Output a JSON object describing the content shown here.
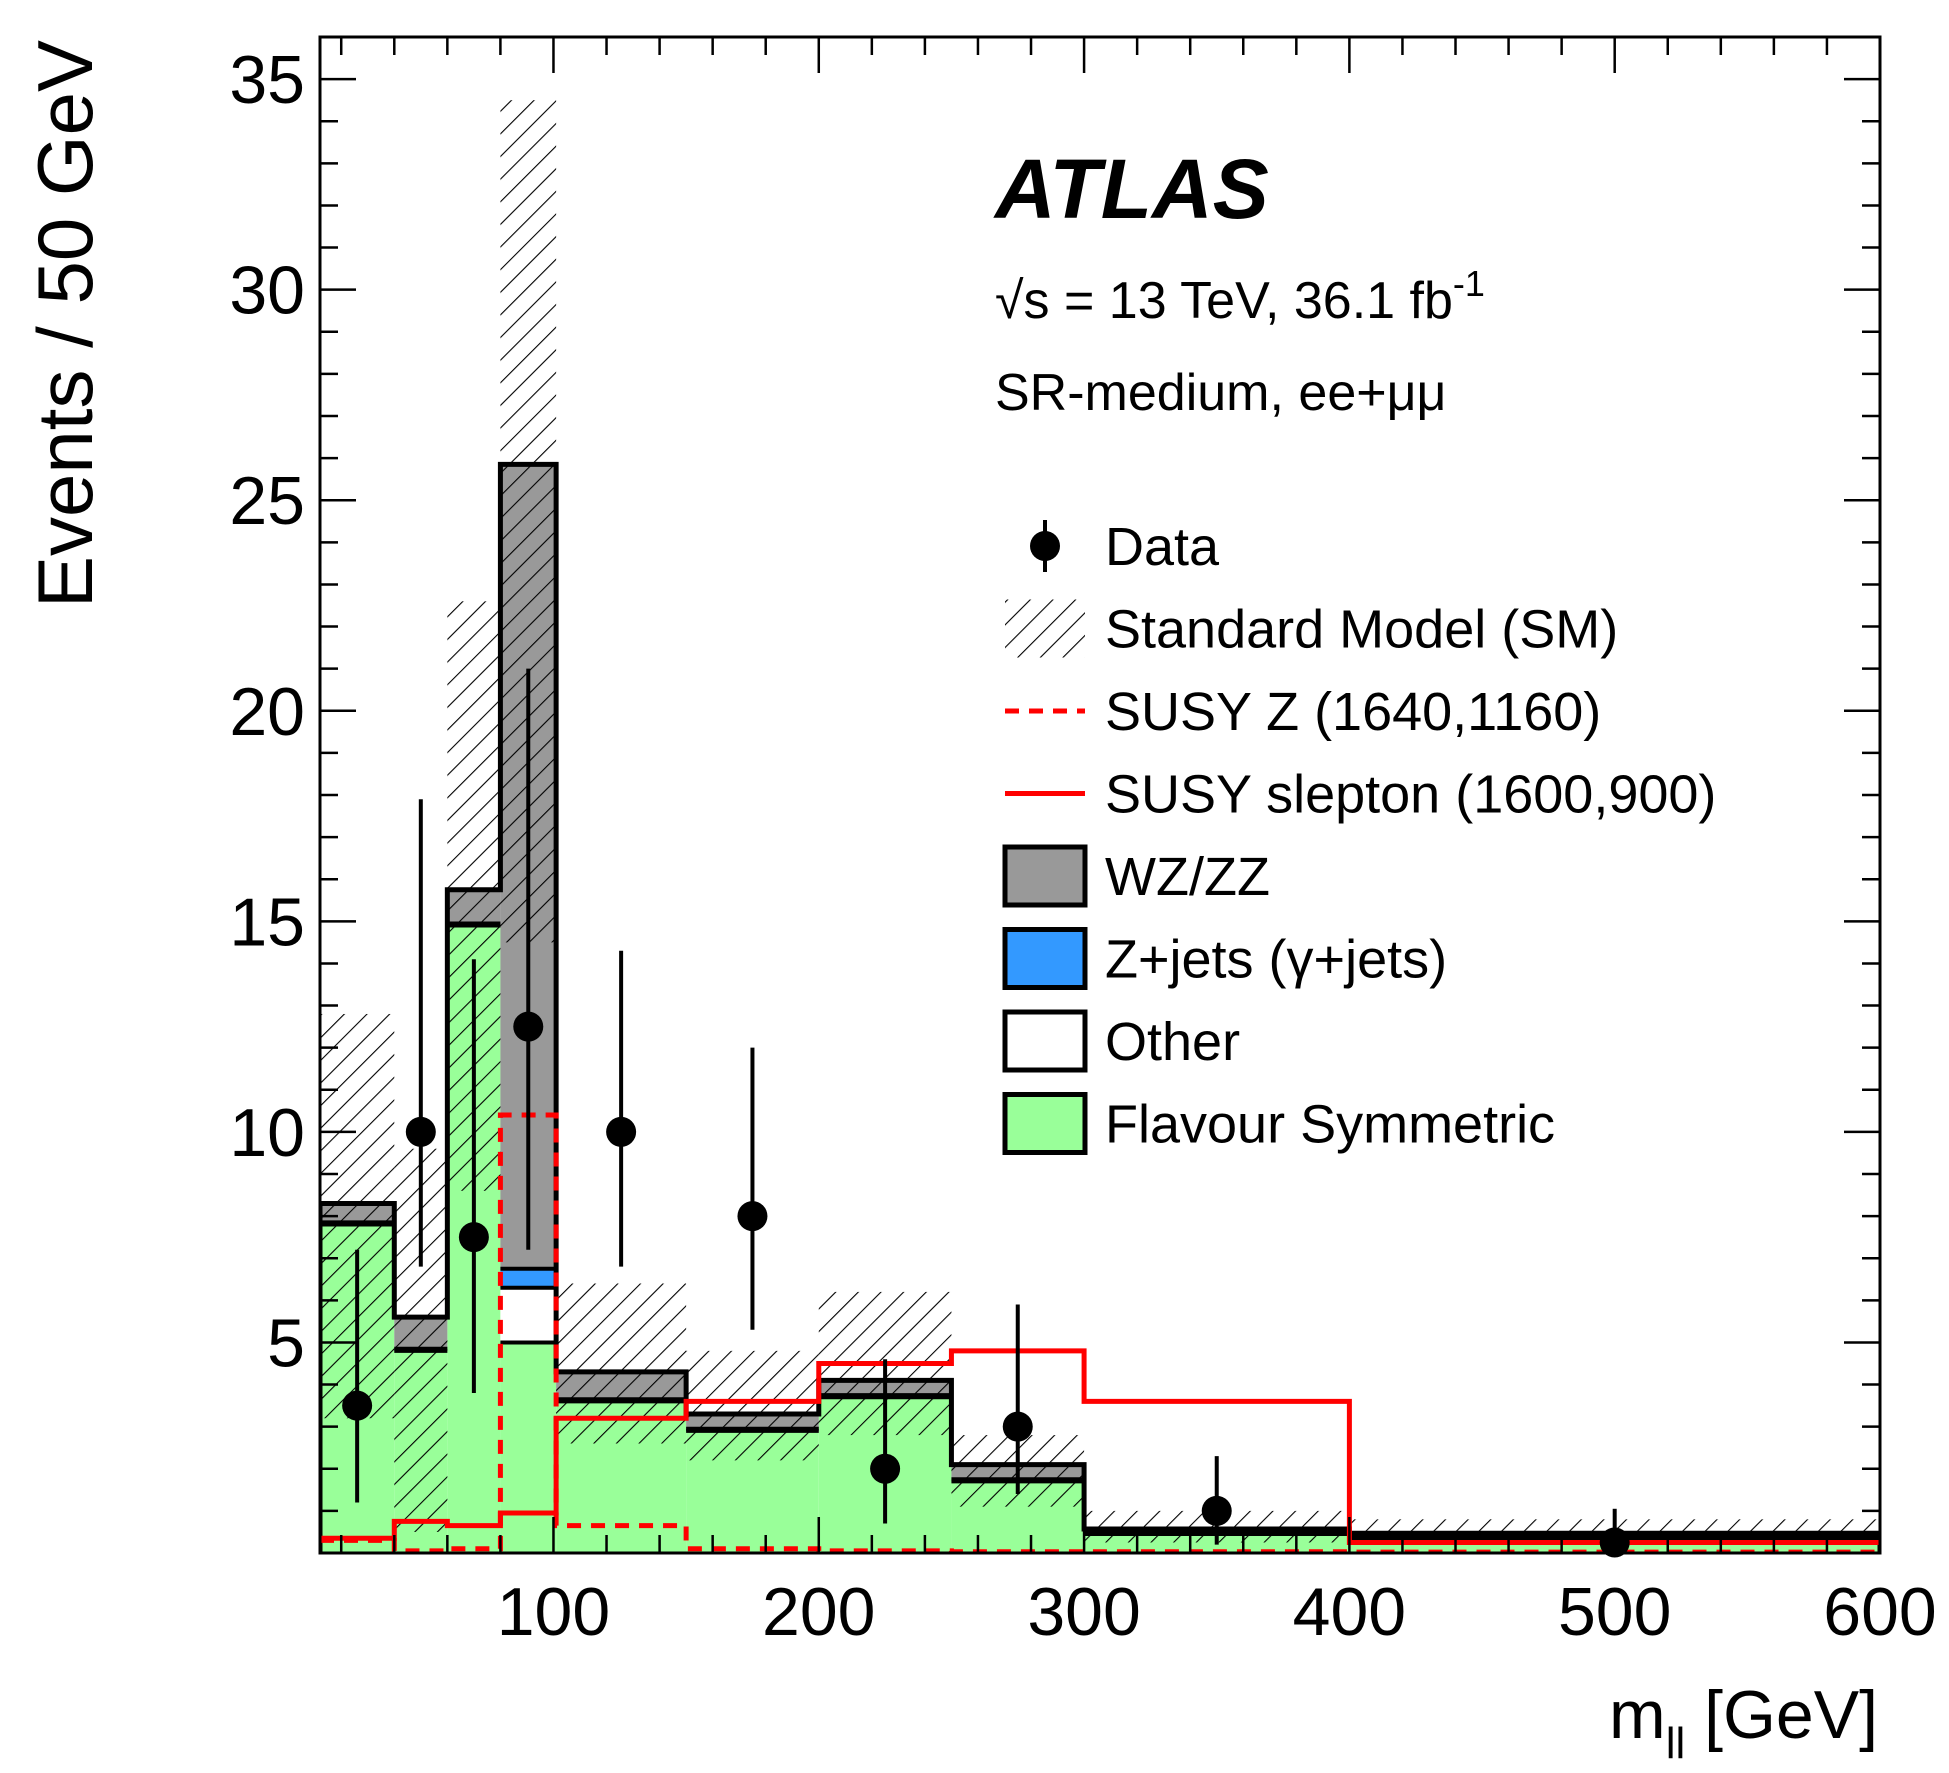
{
  "chart_data": {
    "type": "histogram",
    "experiment_label": "ATLAS",
    "energy_label": {
      "sqrt": "√",
      "text": "s = 13 TeV, 36.1 fb",
      "sup": "-1"
    },
    "region_label": "SR-medium, ee+μμ",
    "xlabel": {
      "main": "m",
      "sub": "ll",
      "unit": " [GeV]"
    },
    "ylabel": "Events / 50 GeV",
    "xlim": [
      12,
      600
    ],
    "ylim": [
      0,
      36
    ],
    "xticks": [
      100,
      200,
      300,
      400,
      500,
      600
    ],
    "yticks": [
      5,
      10,
      15,
      20,
      25,
      30,
      35
    ],
    "bins": [
      {
        "lo": 12,
        "hi": 40
      },
      {
        "lo": 40,
        "hi": 60
      },
      {
        "lo": 60,
        "hi": 80
      },
      {
        "lo": 80,
        "hi": 101
      },
      {
        "lo": 101,
        "hi": 150
      },
      {
        "lo": 150,
        "hi": 200
      },
      {
        "lo": 200,
        "hi": 250
      },
      {
        "lo": 250,
        "hi": 300
      },
      {
        "lo": 300,
        "hi": 400
      },
      {
        "lo": 400,
        "hi": 600
      }
    ],
    "stack": [
      {
        "name": "Flavour Symmetric",
        "color": "#99ff99",
        "values": [
          7.8,
          4.8,
          14.9,
          5.0,
          3.6,
          2.9,
          3.7,
          1.7,
          0.45,
          0.35
        ]
      },
      {
        "name": "Other",
        "color": "#ffffff",
        "values": [
          0.05,
          0.05,
          0.05,
          1.3,
          0.05,
          0.05,
          0.05,
          0.05,
          0.02,
          0.02
        ]
      },
      {
        "name": "Z+jets (γ+jets)",
        "color": "#3399ff",
        "values": [
          0.0,
          0.0,
          0.0,
          0.45,
          0.0,
          0.0,
          0.0,
          0.0,
          0.0,
          0.0
        ]
      },
      {
        "name": "WZ/ZZ",
        "color": "#999999",
        "values": [
          0.45,
          0.75,
          0.8,
          19.1,
          0.65,
          0.35,
          0.35,
          0.35,
          0.1,
          0.1
        ]
      }
    ],
    "sm_uncertainty": {
      "name": "Standard Model (SM)",
      "low": [
        3.2,
        0.5,
        8.6,
        14.5,
        2.6,
        2.2,
        2.8,
        1.1,
        0.25,
        0.2
      ],
      "high": [
        12.8,
        9.6,
        22.6,
        34.5,
        6.4,
        4.8,
        6.2,
        2.8,
        1.0,
        0.8
      ]
    },
    "susy_z": {
      "name": "SUSY Z (1640,1160)",
      "color": "#ff0000",
      "style": "dashed",
      "values": [
        0.3,
        0.05,
        0.1,
        10.4,
        0.65,
        0.1,
        0.05,
        0.03,
        0.03,
        0.02
      ]
    },
    "susy_slepton": {
      "name": "SUSY slepton (1600,900)",
      "color": "#ff0000",
      "style": "solid",
      "values": [
        0.35,
        0.75,
        0.65,
        0.95,
        3.2,
        3.6,
        4.5,
        4.8,
        3.6,
        0.25
      ]
    },
    "data": {
      "name": "Data",
      "points": [
        {
          "x": 26,
          "y": 3.5,
          "err_lo": 2.3,
          "err_hi": 3.7
        },
        {
          "x": 50,
          "y": 10,
          "err_lo": 3.2,
          "err_hi": 7.9
        },
        {
          "x": 70,
          "y": 7.5,
          "err_lo": 3.7,
          "err_hi": 6.6
        },
        {
          "x": 90.5,
          "y": 12.5,
          "err_lo": 5.3,
          "err_hi": 8.5
        },
        {
          "x": 125.5,
          "y": 10,
          "err_lo": 3.2,
          "err_hi": 4.3
        },
        {
          "x": 175,
          "y": 8,
          "err_lo": 2.7,
          "err_hi": 4.0
        },
        {
          "x": 225,
          "y": 2,
          "err_lo": 1.3,
          "err_hi": 2.6
        },
        {
          "x": 275,
          "y": 3,
          "err_lo": 1.6,
          "err_hi": 2.9
        },
        {
          "x": 350,
          "y": 1,
          "err_lo": 0.8,
          "err_hi": 1.3
        },
        {
          "x": 500,
          "y": 0.25,
          "err_lo": 0.2,
          "err_hi": 0.8
        }
      ]
    },
    "legend": {
      "position": "top-right",
      "entries": [
        {
          "label": "Data",
          "kind": "data"
        },
        {
          "label": "Standard Model (SM)",
          "kind": "hatch"
        },
        {
          "label": "SUSY Z (1640,1160)",
          "kind": "dashed-line",
          "color": "#ff0000"
        },
        {
          "label": "SUSY slepton (1600,900)",
          "kind": "solid-line",
          "color": "#ff0000"
        },
        {
          "label": "WZ/ZZ",
          "kind": "box",
          "color": "#999999"
        },
        {
          "label": "Z+jets (γ+jets)",
          "kind": "box",
          "color": "#3399ff"
        },
        {
          "label": "Other",
          "kind": "box",
          "color": "#ffffff"
        },
        {
          "label": "Flavour Symmetric",
          "kind": "box",
          "color": "#99ff99"
        }
      ]
    }
  }
}
